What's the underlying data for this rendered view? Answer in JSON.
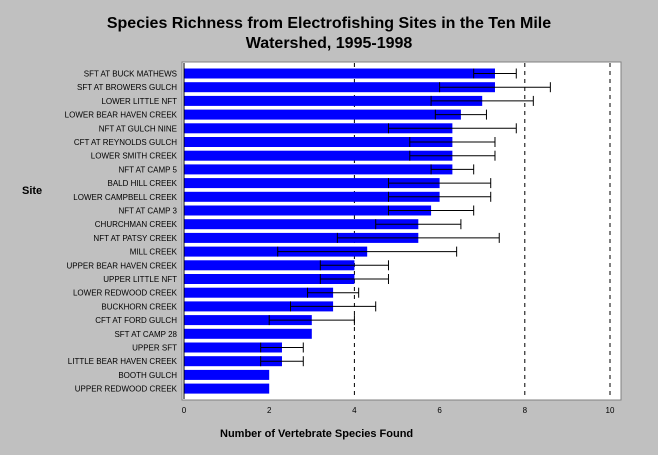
{
  "chart_data": {
    "type": "bar",
    "orientation": "horizontal",
    "title_line1": "Species Richness from Electrofishing Sites in the Ten Mile",
    "title_line2": "Watershed, 1995-1998",
    "xlabel": "Number of Vertebrate Species Found",
    "ylabel": "Site",
    "xlim": [
      0,
      10
    ],
    "xticks": [
      "0",
      "2",
      "4",
      "6",
      "8",
      "10"
    ],
    "grid": "dashed vertical at 4, 8, 10",
    "bar_color": "#0000ff",
    "categories": [
      "SFT AT BUCK MATHEWS",
      "SFT AT BROWERS GULCH",
      "LOWER LITTLE NFT",
      "LOWER BEAR HAVEN CREEK",
      "NFT AT GULCH NINE",
      "CFT AT REYNOLDS GULCH",
      "LOWER SMITH CREEK",
      "NFT AT CAMP 5",
      "BALD HILL CREEK",
      "LOWER CAMPBELL CREEK",
      "NFT AT CAMP 3",
      "CHURCHMAN CREEK",
      "NFT AT PATSY CREEK",
      "MILL CREEK",
      "UPPER BEAR HAVEN CREEK",
      "UPPER LITTLE NFT",
      "LOWER REDWOOD CREEK",
      "BUCKHORN CREEK",
      "CFT AT FORD GULCH",
      "SFT AT CAMP 28",
      "UPPER SFT",
      "LITTLE BEAR HAVEN CREEK",
      "BOOTH GULCH",
      "UPPER REDWOOD CREEK"
    ],
    "values": [
      7.3,
      7.3,
      7.0,
      6.5,
      6.3,
      6.3,
      6.3,
      6.3,
      6.0,
      6.0,
      5.8,
      5.5,
      5.5,
      4.3,
      4.0,
      4.0,
      3.5,
      3.5,
      3.0,
      3.0,
      2.3,
      2.3,
      2.0,
      2.0
    ],
    "error_low": [
      6.8,
      6.0,
      5.8,
      5.9,
      4.8,
      5.3,
      5.3,
      5.8,
      4.8,
      4.8,
      4.8,
      4.5,
      3.6,
      2.2,
      3.2,
      3.2,
      2.9,
      2.5,
      2.0,
      3.0,
      1.8,
      1.8,
      2.0,
      2.0
    ],
    "error_high": [
      7.8,
      8.6,
      8.2,
      7.1,
      7.8,
      7.3,
      7.3,
      6.8,
      7.2,
      7.2,
      6.8,
      6.5,
      7.4,
      6.4,
      4.8,
      4.8,
      4.1,
      4.5,
      4.0,
      3.0,
      2.8,
      2.8,
      2.0,
      2.0
    ]
  }
}
